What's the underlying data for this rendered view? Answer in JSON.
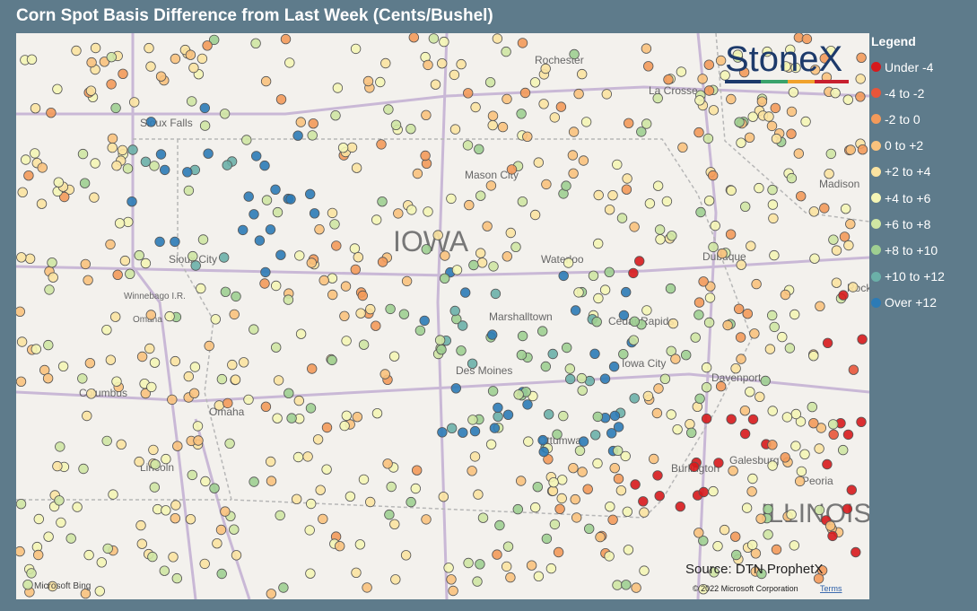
{
  "header": {
    "title": "Corn Spot Basis Difference from Last Week (Cents/Bushel)"
  },
  "legend": {
    "title": "Legend",
    "items": [
      {
        "label": "Under -4",
        "color": "#d7191c"
      },
      {
        "label": "-4 to -2",
        "color": "#e8553a"
      },
      {
        "label": "-2 to 0",
        "color": "#f39a5a"
      },
      {
        "label": "0 to +2",
        "color": "#f9c27d"
      },
      {
        "label": "+2 to +4",
        "color": "#fbe3a1"
      },
      {
        "label": "+4 to +6",
        "color": "#f4f5b5"
      },
      {
        "label": "+6 to +8",
        "color": "#cfe6a3"
      },
      {
        "label": "+8 to +10",
        "color": "#9fcf91"
      },
      {
        "label": "+10 to +12",
        "color": "#6bb0a8"
      },
      {
        "label": "Over +12",
        "color": "#2c7bb6"
      }
    ]
  },
  "logo": "StoneX",
  "map": {
    "labels": [
      "Rochester",
      "La Crosse",
      "Sioux Falls",
      "Mason City",
      "Madison",
      "IOWA",
      "Waterloo",
      "Dubuque",
      "Sioux City",
      "Winnebago I.R.",
      "Omaha",
      "Marshalltown",
      "Cedar Rapids",
      "Iowa City",
      "Davenport",
      "Des Moines",
      "Columbus",
      "Omaha",
      "Lincoln",
      "Ottumwa",
      "Galesburg",
      "Peoria",
      "Burlington",
      "ILLINOIS",
      "Rock"
    ]
  },
  "source": "Source: DTN ProphetX",
  "attribution": {
    "provider": "Microsoft Bing",
    "copyright": "© 2022 Microsoft Corporation",
    "terms": "Terms"
  }
}
